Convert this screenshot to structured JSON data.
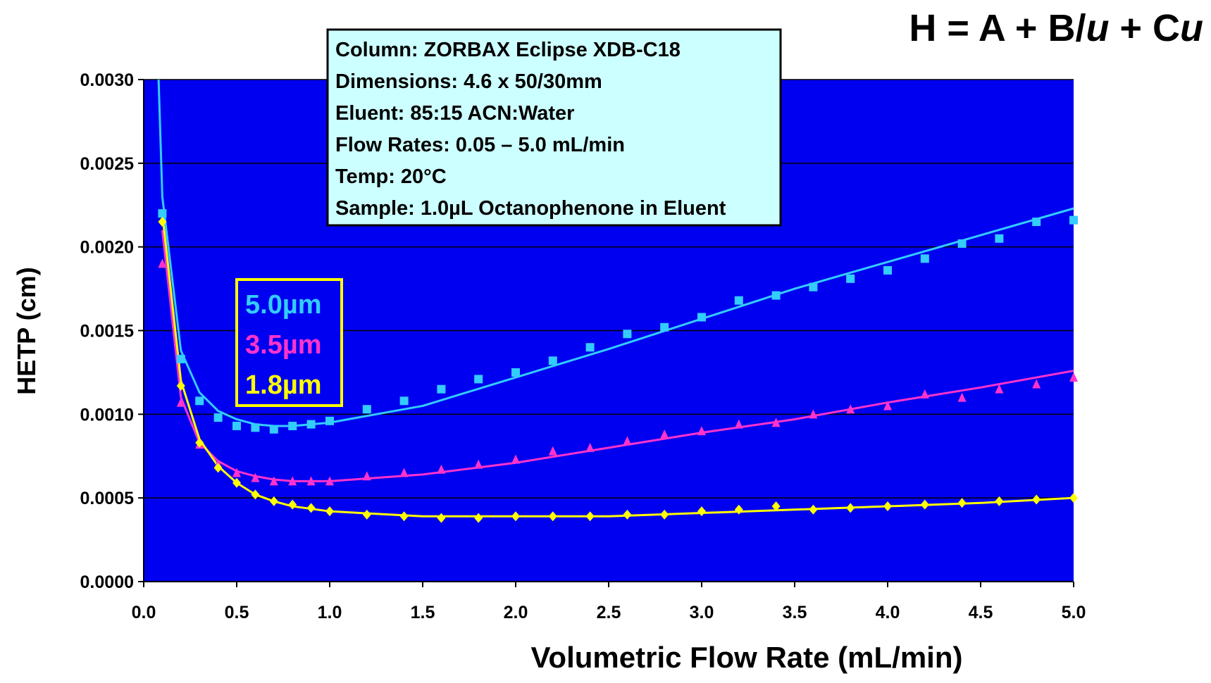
{
  "chart_data": {
    "type": "scatter",
    "equation": [
      "H = A  + B/",
      "u",
      "  + C",
      "u"
    ],
    "info_box": [
      "Column: ZORBAX Eclipse XDB-C18",
      "Dimensions: 4.6 x 50/30mm",
      "Eluent: 85:15 ACN:Water",
      "Flow Rates: 0.05 – 5.0 mL/min",
      "Temp: 20°C",
      "Sample: 1.0µL Octanophenone in Eluent"
    ],
    "x_label": "Volumetric Flow Rate (mL/min)",
    "y_label": "HETP (cm)",
    "xlim": [
      0,
      5
    ],
    "ylim": [
      0,
      0.003
    ],
    "xticks": [
      {
        "value": 0,
        "label": "0.0"
      },
      0.5,
      {
        "value": 1,
        "label": "1.0"
      },
      1.5,
      {
        "value": 2,
        "label": "2.0"
      },
      2.5,
      {
        "value": 3,
        "label": "3.0"
      },
      3.5,
      {
        "value": 4,
        "label": "4.0"
      },
      4.5,
      {
        "value": 5,
        "label": "5.0"
      }
    ],
    "yticks": [
      {
        "value": 0,
        "label": "0.0000"
      },
      {
        "value": 0.0005,
        "label": "0.0005"
      },
      {
        "value": 0.001,
        "label": "0.0010"
      },
      {
        "value": 0.0015,
        "label": "0.0015"
      },
      {
        "value": 0.002,
        "label": "0.0020"
      },
      {
        "value": 0.0025,
        "label": "0.0025"
      },
      {
        "value": 0.003,
        "label": "0.0030"
      }
    ],
    "grid": true,
    "plot_background": "#0000f0",
    "series": [
      {
        "name": "5.0µm",
        "color": "#33ccff",
        "marker": "square",
        "x": [
          0.1,
          0.2,
          0.3,
          0.4,
          0.5,
          0.6,
          0.7,
          0.8,
          0.9,
          1.0,
          1.2,
          1.4,
          1.6,
          1.8,
          2.0,
          2.2,
          2.4,
          2.6,
          2.8,
          3.0,
          3.2,
          3.4,
          3.6,
          3.8,
          4.0,
          4.2,
          4.4,
          4.6,
          4.8,
          5.0
        ],
        "values": [
          0.0022,
          0.00133,
          0.00108,
          0.00098,
          0.00093,
          0.00092,
          0.00091,
          0.00093,
          0.00094,
          0.00096,
          0.00103,
          0.00108,
          0.00115,
          0.00121,
          0.00125,
          0.00132,
          0.0014,
          0.00148,
          0.00152,
          0.00158,
          0.00168,
          0.00171,
          0.00176,
          0.00181,
          0.00186,
          0.00193,
          0.00202,
          0.00205,
          0.00215,
          0.00216
        ],
        "fit": {
          "x": [
            0.08,
            0.1,
            0.2,
            0.3,
            0.4,
            0.5,
            0.6,
            0.7,
            0.8,
            0.9,
            1.0,
            1.5,
            2.0,
            2.5,
            3.0,
            3.5,
            4.0,
            4.5,
            5.0
          ],
          "values": [
            0.003,
            0.0023,
            0.00138,
            0.00113,
            0.00102,
            0.00097,
            0.00094,
            0.00093,
            0.00093,
            0.00094,
            0.00095,
            0.00105,
            0.00122,
            0.00139,
            0.00157,
            0.00175,
            0.00191,
            0.00207,
            0.00223
          ]
        }
      },
      {
        "name": "3.5µm",
        "color": "#ff33cc",
        "marker": "triangle",
        "x": [
          0.1,
          0.2,
          0.3,
          0.4,
          0.5,
          0.6,
          0.7,
          0.8,
          0.9,
          1.0,
          1.2,
          1.4,
          1.6,
          1.8,
          2.0,
          2.2,
          2.4,
          2.6,
          2.8,
          3.0,
          3.2,
          3.4,
          3.6,
          3.8,
          4.0,
          4.2,
          4.4,
          4.6,
          4.8,
          5.0
        ],
        "values": [
          0.0019,
          0.00107,
          0.00082,
          0.0007,
          0.00065,
          0.00062,
          0.0006,
          0.0006,
          0.0006,
          0.0006,
          0.00063,
          0.00065,
          0.00067,
          0.0007,
          0.00073,
          0.00078,
          0.0008,
          0.00084,
          0.00088,
          0.0009,
          0.00094,
          0.00095,
          0.001,
          0.00103,
          0.00105,
          0.00112,
          0.0011,
          0.00115,
          0.00118,
          0.00122
        ],
        "fit": {
          "x": [
            0.1,
            0.2,
            0.3,
            0.4,
            0.5,
            0.6,
            0.7,
            0.8,
            1.0,
            1.5,
            2.0,
            2.5,
            3.0,
            3.5,
            4.0,
            4.5,
            5.0
          ],
          "values": [
            0.0021,
            0.0011,
            0.00083,
            0.00072,
            0.00066,
            0.00063,
            0.00061,
            0.0006,
            0.0006,
            0.00064,
            0.00071,
            0.0008,
            0.00089,
            0.00097,
            0.00107,
            0.00116,
            0.00126
          ]
        }
      },
      {
        "name": "1.8µm",
        "color": "#ffff00",
        "marker": "diamond",
        "x": [
          0.1,
          0.2,
          0.3,
          0.4,
          0.5,
          0.6,
          0.7,
          0.8,
          0.9,
          1.0,
          1.2,
          1.4,
          1.6,
          1.8,
          2.0,
          2.2,
          2.4,
          2.6,
          2.8,
          3.0,
          3.2,
          3.4,
          3.6,
          3.8,
          4.0,
          4.2,
          4.4,
          4.6,
          4.8,
          5.0
        ],
        "values": [
          0.00215,
          0.00117,
          0.00083,
          0.00068,
          0.00059,
          0.00052,
          0.00048,
          0.00046,
          0.00044,
          0.00042,
          0.0004,
          0.00039,
          0.00038,
          0.00038,
          0.00039,
          0.00039,
          0.00039,
          0.0004,
          0.0004,
          0.00042,
          0.00043,
          0.00045,
          0.00043,
          0.00044,
          0.00045,
          0.00046,
          0.00047,
          0.00048,
          0.00049,
          0.0005
        ],
        "fit": {
          "x": [
            0.1,
            0.2,
            0.3,
            0.4,
            0.5,
            0.6,
            0.7,
            0.8,
            1.0,
            1.5,
            2.0,
            2.5,
            3.0,
            3.5,
            4.0,
            4.5,
            5.0
          ],
          "values": [
            0.0022,
            0.0012,
            0.00085,
            0.00069,
            0.00059,
            0.00052,
            0.00048,
            0.00045,
            0.00042,
            0.00039,
            0.00039,
            0.00039,
            0.00041,
            0.00043,
            0.00045,
            0.00047,
            0.0005
          ]
        }
      }
    ]
  }
}
